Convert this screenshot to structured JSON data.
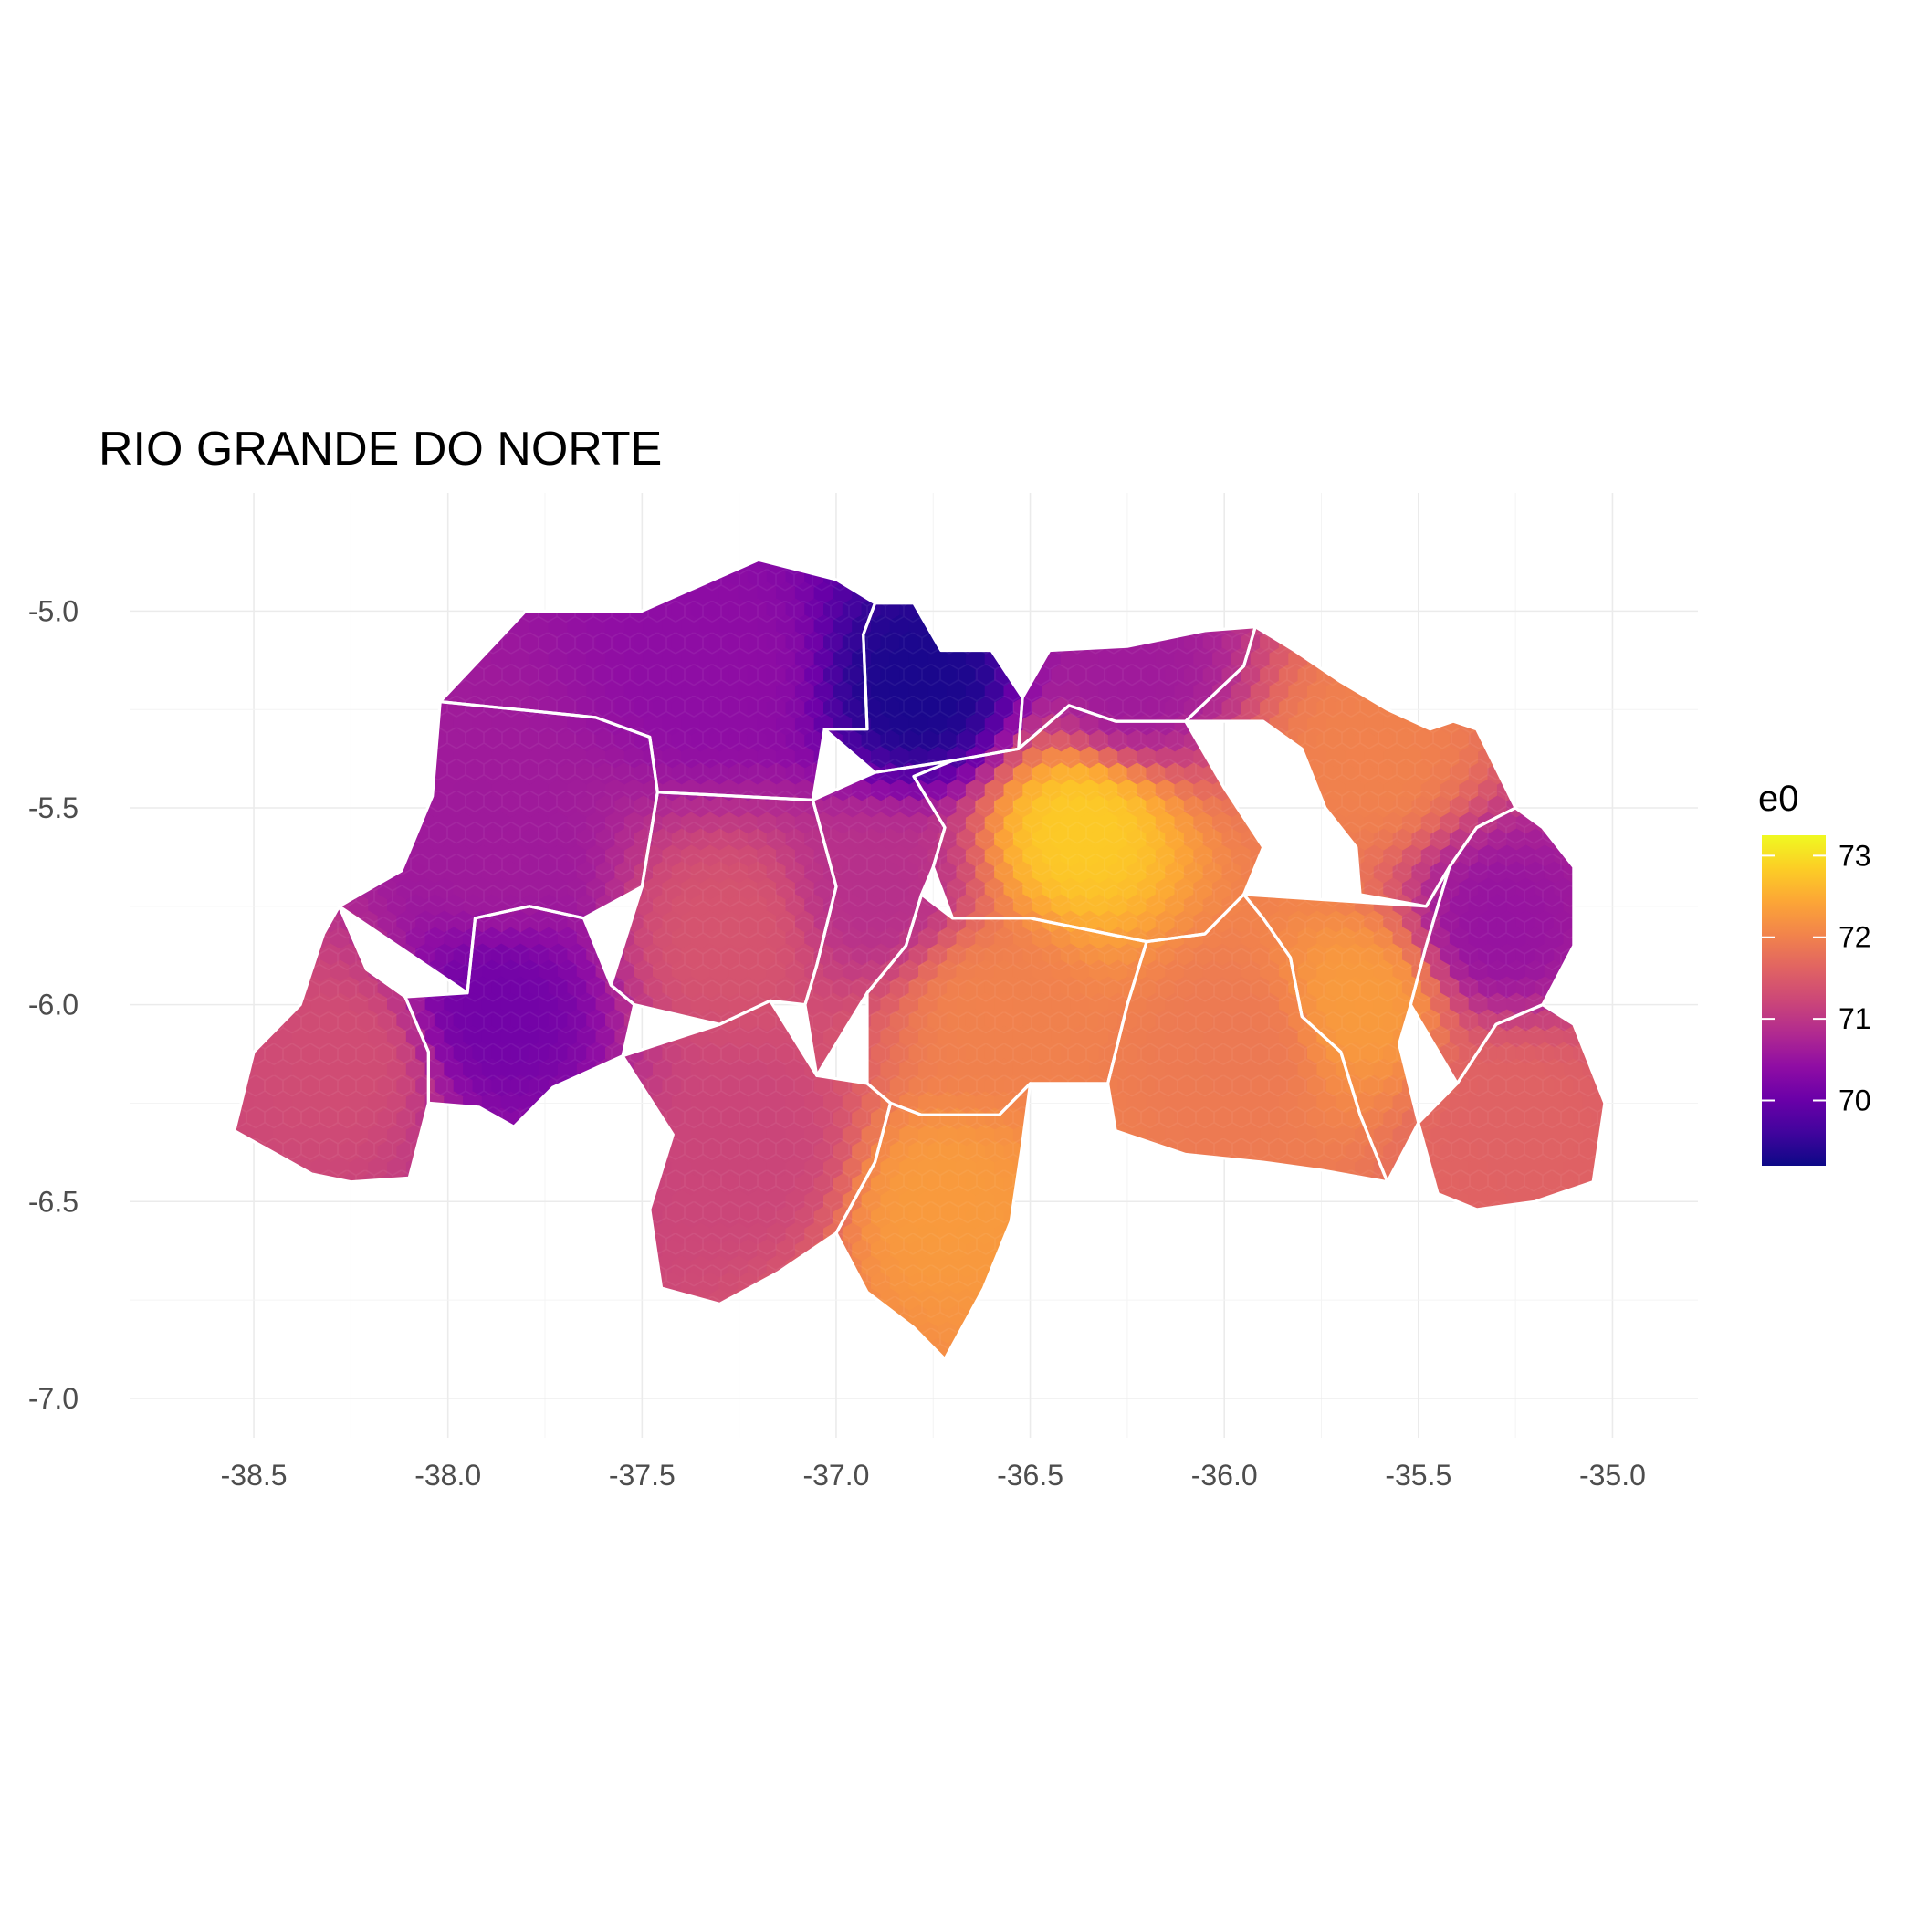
{
  "title": "RIO GRANDE DO NORTE",
  "chart_data": {
    "type": "heatmap",
    "title": "RIO GRANDE DO NORTE",
    "xlabel": "",
    "ylabel": "",
    "xlim": [
      -38.82,
      -34.78
    ],
    "ylim": [
      -7.1,
      -4.7
    ],
    "x_ticks": [
      -38.5,
      -38.0,
      -37.5,
      -37.0,
      -36.5,
      -36.0,
      -35.5,
      -35.0
    ],
    "x_tick_labels": [
      "-38.5",
      "-38.0",
      "-37.5",
      "-37.0",
      "-36.5",
      "-36.0",
      "-35.5",
      "-35.0"
    ],
    "y_ticks": [
      -5.0,
      -5.5,
      -6.0,
      -6.5,
      -7.0
    ],
    "y_tick_labels": [
      "-5.0",
      "-5.5",
      "-6.0",
      "-6.5",
      "-7.0"
    ],
    "grid": true,
    "legend": {
      "title": "e0",
      "placement": "right",
      "range": [
        69.2,
        73.25
      ],
      "ticks": [
        70,
        71,
        72,
        73
      ],
      "tick_labels": [
        "70",
        "71",
        "72",
        "73"
      ],
      "palette": [
        "#0d0887",
        "#41049d",
        "#6a00a8",
        "#8f0da4",
        "#b12a90",
        "#cc4778",
        "#e16462",
        "#f2844b",
        "#fca636",
        "#fcce25",
        "#f0f921"
      ]
    },
    "regions": [
      {
        "outline": [
          [
            -38.02,
            -5.23
          ],
          [
            -37.62,
            -5.27
          ],
          [
            -37.48,
            -5.32
          ],
          [
            -37.46,
            -5.46
          ],
          [
            -37.5,
            -5.7
          ],
          [
            -37.65,
            -5.78
          ],
          [
            -37.79,
            -5.75
          ],
          [
            -37.93,
            -5.78
          ],
          [
            -37.95,
            -5.97
          ],
          [
            -38.11,
            -5.98
          ],
          [
            -38.21,
            -5.91
          ],
          [
            -38.28,
            -5.75
          ],
          [
            -38.12,
            -5.66
          ],
          [
            -38.04,
            -5.47
          ]
        ],
        "value": 70.6
      },
      {
        "outline": [
          [
            -37.5,
            -5.0
          ],
          [
            -37.2,
            -4.87
          ],
          [
            -37.0,
            -4.92
          ],
          [
            -36.9,
            -4.98
          ],
          [
            -36.93,
            -5.06
          ],
          [
            -36.92,
            -5.3
          ],
          [
            -37.03,
            -5.3
          ],
          [
            -37.06,
            -5.48
          ],
          [
            -37.46,
            -5.46
          ],
          [
            -37.48,
            -5.32
          ],
          [
            -37.62,
            -5.27
          ],
          [
            -38.02,
            -5.23
          ],
          [
            -37.8,
            -5.0
          ]
        ],
        "value": 70.4
      },
      {
        "outline": [
          [
            -36.9,
            -4.98
          ],
          [
            -36.8,
            -4.98
          ],
          [
            -36.73,
            -5.1
          ],
          [
            -36.6,
            -5.1
          ],
          [
            -36.52,
            -5.22
          ],
          [
            -36.53,
            -5.35
          ],
          [
            -36.7,
            -5.38
          ],
          [
            -36.9,
            -5.41
          ],
          [
            -37.03,
            -5.3
          ],
          [
            -36.92,
            -5.3
          ],
          [
            -36.93,
            -5.06
          ]
        ],
        "value": 69.3
      },
      {
        "outline": [
          [
            -36.53,
            -5.35
          ],
          [
            -36.4,
            -5.24
          ],
          [
            -36.28,
            -5.28
          ],
          [
            -36.1,
            -5.28
          ],
          [
            -35.95,
            -5.14
          ],
          [
            -35.92,
            -5.04
          ],
          [
            -36.05,
            -5.05
          ],
          [
            -36.25,
            -5.09
          ],
          [
            -36.45,
            -5.1
          ],
          [
            -36.52,
            -5.22
          ]
        ],
        "value": 70.6
      },
      {
        "outline": [
          [
            -38.28,
            -5.75
          ],
          [
            -38.21,
            -5.91
          ],
          [
            -38.11,
            -5.98
          ],
          [
            -38.05,
            -6.12
          ],
          [
            -38.05,
            -6.25
          ],
          [
            -37.92,
            -6.26
          ],
          [
            -37.83,
            -6.31
          ],
          [
            -37.73,
            -6.21
          ],
          [
            -37.55,
            -6.13
          ],
          [
            -37.52,
            -6.0
          ],
          [
            -37.58,
            -5.95
          ],
          [
            -37.65,
            -5.78
          ],
          [
            -37.79,
            -5.75
          ],
          [
            -37.93,
            -5.78
          ],
          [
            -37.95,
            -5.97
          ]
        ],
        "value": 70.1
      },
      {
        "outline": [
          [
            -37.46,
            -5.46
          ],
          [
            -37.06,
            -5.48
          ],
          [
            -37.0,
            -5.7
          ],
          [
            -37.05,
            -5.9
          ],
          [
            -37.08,
            -6.0
          ],
          [
            -37.17,
            -5.99
          ],
          [
            -37.3,
            -6.05
          ],
          [
            -37.52,
            -6.0
          ],
          [
            -37.58,
            -5.95
          ],
          [
            -37.5,
            -5.7
          ]
        ],
        "value": 71.4
      },
      {
        "outline": [
          [
            -37.06,
            -5.48
          ],
          [
            -36.9,
            -5.41
          ],
          [
            -36.7,
            -5.38
          ],
          [
            -36.8,
            -5.42
          ],
          [
            -36.72,
            -5.55
          ],
          [
            -36.75,
            -5.65
          ],
          [
            -36.78,
            -5.72
          ],
          [
            -36.82,
            -5.85
          ],
          [
            -36.92,
            -5.97
          ],
          [
            -37.05,
            -6.18
          ],
          [
            -37.08,
            -6.0
          ],
          [
            -37.05,
            -5.9
          ],
          [
            -37.0,
            -5.7
          ]
        ],
        "value": 70.9
      },
      {
        "outline": [
          [
            -36.53,
            -5.35
          ],
          [
            -36.7,
            -5.38
          ],
          [
            -36.8,
            -5.42
          ],
          [
            -36.72,
            -5.55
          ],
          [
            -36.75,
            -5.65
          ],
          [
            -36.7,
            -5.78
          ],
          [
            -36.5,
            -5.78
          ],
          [
            -36.3,
            -5.82
          ],
          [
            -36.2,
            -5.84
          ],
          [
            -36.05,
            -5.82
          ],
          [
            -35.95,
            -5.72
          ],
          [
            -35.9,
            -5.6
          ],
          [
            -36.0,
            -5.45
          ],
          [
            -36.1,
            -5.28
          ],
          [
            -36.28,
            -5.28
          ],
          [
            -36.4,
            -5.24
          ]
        ],
        "value": 72.8
      },
      {
        "outline": [
          [
            -36.1,
            -5.28
          ],
          [
            -35.95,
            -5.14
          ],
          [
            -35.92,
            -5.04
          ],
          [
            -35.82,
            -5.1
          ],
          [
            -35.7,
            -5.18
          ],
          [
            -35.58,
            -5.25
          ],
          [
            -35.47,
            -5.3
          ],
          [
            -35.41,
            -5.28
          ],
          [
            -35.35,
            -5.3
          ],
          [
            -35.3,
            -5.4
          ],
          [
            -35.25,
            -5.5
          ],
          [
            -35.35,
            -5.55
          ],
          [
            -35.42,
            -5.65
          ],
          [
            -35.48,
            -5.75
          ],
          [
            -35.65,
            -5.72
          ],
          [
            -35.66,
            -5.6
          ],
          [
            -35.74,
            -5.5
          ],
          [
            -35.8,
            -5.35
          ],
          [
            -35.9,
            -5.28
          ]
        ],
        "value": 72.0
      },
      {
        "outline": [
          [
            -36.82,
            -5.85
          ],
          [
            -36.78,
            -5.72
          ],
          [
            -36.7,
            -5.78
          ],
          [
            -36.5,
            -5.78
          ],
          [
            -36.3,
            -5.82
          ],
          [
            -36.2,
            -5.84
          ],
          [
            -36.25,
            -6.0
          ],
          [
            -36.3,
            -6.2
          ],
          [
            -36.5,
            -6.2
          ],
          [
            -36.58,
            -6.28
          ],
          [
            -36.78,
            -6.28
          ],
          [
            -36.86,
            -6.25
          ],
          [
            -36.92,
            -6.2
          ],
          [
            -36.92,
            -5.97
          ]
        ],
        "value": 72.0
      },
      {
        "outline": [
          [
            -36.2,
            -5.84
          ],
          [
            -36.05,
            -5.82
          ],
          [
            -35.95,
            -5.72
          ],
          [
            -35.9,
            -5.78
          ],
          [
            -35.83,
            -5.88
          ],
          [
            -35.8,
            -6.03
          ],
          [
            -35.7,
            -6.12
          ],
          [
            -35.65,
            -6.28
          ],
          [
            -35.58,
            -6.45
          ],
          [
            -35.75,
            -6.42
          ],
          [
            -35.9,
            -6.4
          ],
          [
            -36.1,
            -6.38
          ],
          [
            -36.28,
            -6.32
          ],
          [
            -36.3,
            -6.2
          ],
          [
            -36.25,
            -6.0
          ]
        ],
        "value": 71.9
      },
      {
        "outline": [
          [
            -35.95,
            -5.72
          ],
          [
            -35.48,
            -5.75
          ],
          [
            -35.42,
            -5.65
          ],
          [
            -35.48,
            -5.85
          ],
          [
            -35.52,
            -6.0
          ],
          [
            -35.55,
            -6.1
          ],
          [
            -35.5,
            -6.3
          ],
          [
            -35.58,
            -6.45
          ],
          [
            -35.65,
            -6.28
          ],
          [
            -35.7,
            -6.12
          ],
          [
            -35.8,
            -6.03
          ],
          [
            -35.83,
            -5.88
          ],
          [
            -35.9,
            -5.78
          ]
        ],
        "value": 72.3
      },
      {
        "outline": [
          [
            -35.42,
            -5.65
          ],
          [
            -35.35,
            -5.55
          ],
          [
            -35.25,
            -5.5
          ],
          [
            -35.18,
            -5.55
          ],
          [
            -35.1,
            -5.65
          ],
          [
            -35.1,
            -5.85
          ],
          [
            -35.18,
            -6.0
          ],
          [
            -35.3,
            -6.05
          ],
          [
            -35.4,
            -6.2
          ],
          [
            -35.52,
            -6.0
          ],
          [
            -35.48,
            -5.85
          ]
        ],
        "value": 70.5
      },
      {
        "outline": [
          [
            -37.55,
            -6.13
          ],
          [
            -37.3,
            -6.05
          ],
          [
            -37.17,
            -5.99
          ],
          [
            -37.05,
            -6.18
          ],
          [
            -36.92,
            -6.2
          ],
          [
            -36.86,
            -6.25
          ],
          [
            -36.9,
            -6.4
          ],
          [
            -37.0,
            -6.58
          ],
          [
            -37.15,
            -6.68
          ],
          [
            -37.3,
            -6.76
          ],
          [
            -37.45,
            -6.72
          ],
          [
            -37.48,
            -6.52
          ],
          [
            -37.42,
            -6.33
          ]
        ],
        "value": 71.2
      },
      {
        "outline": [
          [
            -36.86,
            -6.25
          ],
          [
            -36.78,
            -6.28
          ],
          [
            -36.58,
            -6.28
          ],
          [
            -36.5,
            -6.2
          ],
          [
            -36.52,
            -6.35
          ],
          [
            -36.55,
            -6.55
          ],
          [
            -36.62,
            -6.72
          ],
          [
            -36.72,
            -6.9
          ],
          [
            -36.8,
            -6.82
          ],
          [
            -36.92,
            -6.73
          ],
          [
            -37.0,
            -6.58
          ],
          [
            -36.9,
            -6.4
          ]
        ],
        "value": 72.3
      },
      {
        "outline": [
          [
            -35.4,
            -6.2
          ],
          [
            -35.3,
            -6.05
          ],
          [
            -35.18,
            -6.0
          ],
          [
            -35.1,
            -6.05
          ],
          [
            -35.02,
            -6.25
          ],
          [
            -35.05,
            -6.45
          ],
          [
            -35.2,
            -6.5
          ],
          [
            -35.35,
            -6.52
          ],
          [
            -35.45,
            -6.48
          ],
          [
            -35.5,
            -6.3
          ]
        ],
        "value": 71.6
      },
      {
        "outline": [
          [
            -38.11,
            -5.98
          ],
          [
            -38.21,
            -5.91
          ],
          [
            -38.28,
            -5.75
          ],
          [
            -38.32,
            -5.82
          ],
          [
            -38.38,
            -6.0
          ],
          [
            -38.5,
            -6.12
          ],
          [
            -38.55,
            -6.32
          ],
          [
            -38.35,
            -6.43
          ],
          [
            -38.25,
            -6.45
          ],
          [
            -38.1,
            -6.44
          ],
          [
            -38.05,
            -6.25
          ],
          [
            -38.05,
            -6.12
          ]
        ],
        "value": 71.3
      }
    ]
  }
}
